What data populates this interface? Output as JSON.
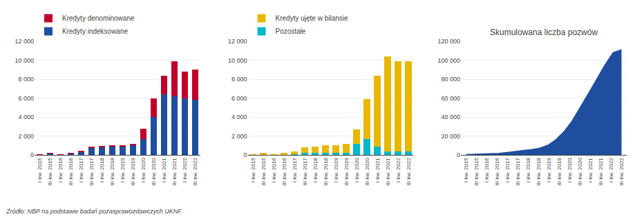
{
  "chart_data": [
    {
      "type": "bar",
      "stacked": true,
      "categories": [
        "I kw. 2015",
        "III kw. 2015",
        "I kw. 2016",
        "III kw. 2016",
        "I kw. 2017",
        "III kw. 2017",
        "I kw. 2018",
        "III kw. 2018",
        "I kw. 2019",
        "III kw. 2019",
        "I kw. 2020",
        "III kw. 2020",
        "I kw. 2021",
        "III kw. 2021",
        "I kw. 2022",
        "III kw. 2022"
      ],
      "series": [
        {
          "name": "Kredyty indeksowane",
          "color": "#1f4e9e",
          "values": [
            30,
            200,
            30,
            200,
            350,
            700,
            800,
            850,
            900,
            1000,
            1700,
            4000,
            6400,
            6200,
            6000,
            5800
          ]
        },
        {
          "name": "Kredyty denominowane",
          "color": "#c0002a",
          "values": [
            5,
            5,
            30,
            10,
            50,
            150,
            150,
            150,
            150,
            150,
            1100,
            2000,
            2000,
            3700,
            2800,
            3200
          ]
        }
      ],
      "ylim": [
        0,
        12000
      ],
      "yticks": [
        0,
        {
          "value": 2000,
          "label": "2 000"
        },
        {
          "value": 4000,
          "label": "4 000"
        },
        {
          "value": 6000,
          "label": "6 000"
        },
        {
          "value": 8000,
          "label": "8 000"
        },
        {
          "value": 10000,
          "label": "10 000"
        },
        {
          "value": 12000,
          "label": "12 000"
        }
      ],
      "grid": true,
      "legend": "upper left",
      "annotations": [
        "Źródło: NBP na podstawie badań pozasprawozdawczych UKNF."
      ]
    },
    {
      "type": "bar",
      "stacked": true,
      "categories": [
        "I kw. 2015",
        "III kw. 2015",
        "I kw. 2016",
        "III kw. 2016",
        "I kw. 2017",
        "III kw. 2017",
        "I kw. 2018",
        "III kw. 2018",
        "I kw. 2019",
        "III kw. 2019",
        "I kw. 2020",
        "III kw. 2020",
        "I kw. 2021",
        "III kw. 2021",
        "I kw. 2022",
        "III kw. 2022"
      ],
      "series": [
        {
          "name": "Pozostałe",
          "color": "#00b8c8",
          "values": [
            10,
            30,
            10,
            30,
            70,
            200,
            200,
            250,
            200,
            250,
            1200,
            1700,
            850,
            400,
            400,
            400
          ]
        },
        {
          "name": "Kredyty ujęte w bilansie",
          "color": "#e8b800",
          "values": [
            60,
            180,
            60,
            180,
            280,
            600,
            700,
            750,
            800,
            900,
            1500,
            4200,
            7500,
            10000,
            9500,
            9500
          ]
        }
      ],
      "ylim": [
        0,
        12000
      ],
      "yticks": [
        0,
        {
          "value": 2000,
          "label": "2 000"
        },
        {
          "value": 4000,
          "label": "4 000"
        },
        {
          "value": 6000,
          "label": "6 000"
        },
        {
          "value": 8000,
          "label": "8 000"
        },
        {
          "value": 10000,
          "label": "10 000"
        },
        {
          "value": 12000,
          "label": "12 000"
        }
      ],
      "grid": true,
      "legend": "upper left"
    },
    {
      "type": "area",
      "title": "Skumulowana liczba pozwów",
      "color": "#1f4e9e",
      "x": [
        0,
        0.7894736842105263,
        1.5789473684210527,
        2.3684210526315788,
        3.1578947368421053,
        3.9473684210526314,
        4.7368421052631575,
        5.526315789473684,
        6.315789473684211,
        7.105263157894737,
        7.894736842105263,
        8.68421052631579,
        9.473684210526315,
        10.263157894736842,
        11.052631578947368,
        11.842105263157894,
        12.631578947368421,
        13.421052631578947,
        14.210526315789474,
        15
      ],
      "values": [
        100,
        400,
        600,
        1000,
        1500,
        2400,
        3300,
        4400,
        5500,
        6900,
        10000,
        16000,
        24500,
        36000,
        50000,
        65000,
        80000,
        95000,
        108000,
        111000
      ],
      "xlim": [
        -0.5,
        15.5
      ],
      "xticks": [
        {
          "value": 0,
          "label": "I kw. 2015"
        },
        {
          "value": 1,
          "label": "III kw. 2015"
        },
        {
          "value": 2,
          "label": "I kw. 2016"
        },
        {
          "value": 3,
          "label": "III kw. 2016"
        },
        {
          "value": 4,
          "label": "I kw. 2017"
        },
        {
          "value": 5,
          "label": "III kw. 2017"
        },
        {
          "value": 6,
          "label": "I kw. 2018"
        },
        {
          "value": 7,
          "label": "III kw. 2018"
        },
        {
          "value": 8,
          "label": "I kw. 2019"
        },
        {
          "value": 9,
          "label": "III kw. 2019"
        },
        {
          "value": 10,
          "label": "I kw. 2020"
        },
        {
          "value": 11,
          "label": "III kw. 2020"
        },
        {
          "value": 12,
          "label": "I kw. 2021"
        },
        {
          "value": 13,
          "label": "III kw. 2021"
        },
        {
          "value": 14,
          "label": "I kw. 2022"
        },
        {
          "value": 15,
          "label": "III kw. 2022"
        }
      ],
      "ylim": [
        0,
        120000
      ],
      "yticks": [
        0,
        {
          "value": 20000,
          "label": "20 000"
        },
        {
          "value": 40000,
          "label": "40 000"
        },
        {
          "value": 60000,
          "label": "60 000"
        },
        {
          "value": 80000,
          "label": "80 000"
        },
        {
          "value": 100000,
          "label": "100 000"
        },
        {
          "value": 120000,
          "label": "120 000"
        }
      ],
      "grid": true
    }
  ]
}
